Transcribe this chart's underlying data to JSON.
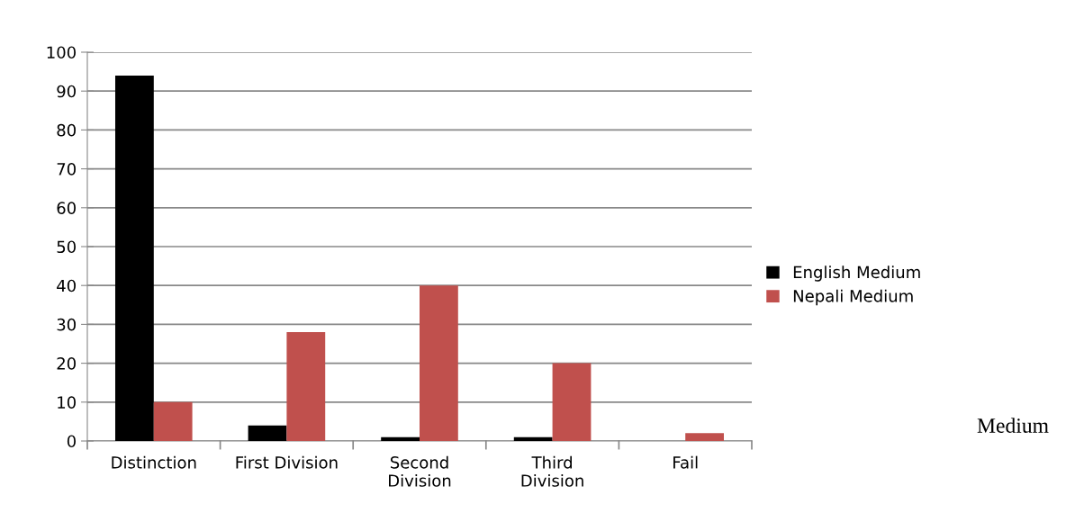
{
  "chart_data": {
    "type": "bar",
    "categories": [
      "Distinction",
      "First Division",
      "Second\nDivision",
      "Third\nDivision",
      "Fail"
    ],
    "series": [
      {
        "name": "English Medium",
        "color": "#000000",
        "values": [
          94,
          4,
          1,
          1,
          0
        ]
      },
      {
        "name": "Nepali Medium",
        "color": "#c0504d",
        "values": [
          10,
          28,
          40,
          20,
          2
        ]
      }
    ],
    "ylim": [
      0,
      100
    ],
    "yticks": [
      0,
      10,
      20,
      30,
      40,
      50,
      60,
      70,
      80,
      90,
      100
    ],
    "grid": "y",
    "legend": "right",
    "annotations": [
      "Medium"
    ]
  }
}
